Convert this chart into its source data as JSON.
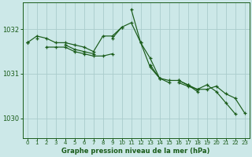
{
  "bg_color": "#cce8e8",
  "grid_color": "#aacccc",
  "line_color": "#1a5c1a",
  "xlabel": "Graphe pression niveau de la mer (hPa)",
  "xlabel_color": "#1a5c1a",
  "ylim": [
    1029.55,
    1032.6
  ],
  "xlim": [
    -0.5,
    23.5
  ],
  "yticks": [
    1030,
    1031,
    1032
  ],
  "xticks": [
    0,
    1,
    2,
    3,
    4,
    5,
    6,
    7,
    8,
    9,
    10,
    11,
    12,
    13,
    14,
    15,
    16,
    17,
    18,
    19,
    20,
    21,
    22,
    23
  ],
  "series": [
    [
      1031.7,
      1031.85,
      1031.8,
      1031.7,
      1031.7,
      1031.65,
      1031.6,
      1031.5,
      1031.85,
      1031.85,
      1032.05,
      1032.15,
      1031.7,
      1031.35,
      1030.9,
      1030.85,
      1030.85,
      1030.75,
      1030.65,
      1030.75,
      1030.6,
      1030.35,
      1030.1,
      null
    ],
    [
      1031.7,
      null,
      1031.6,
      1031.6,
      1031.6,
      1031.5,
      1031.45,
      1031.4,
      1031.4,
      1031.45,
      null,
      1032.45,
      1031.7,
      1031.15,
      1030.9,
      1030.8,
      null,
      null,
      null,
      null,
      null,
      null,
      null,
      null
    ],
    [
      null,
      1031.8,
      null,
      null,
      null,
      null,
      null,
      null,
      null,
      null,
      null,
      null,
      null,
      null,
      null,
      null,
      1030.8,
      1030.72,
      1030.65,
      1030.65,
      1030.72,
      1030.55,
      1030.45,
      1030.12
    ],
    [
      1031.7,
      null,
      null,
      null,
      1031.65,
      1031.55,
      1031.5,
      1031.45,
      null,
      1031.8,
      1032.05,
      null,
      null,
      1031.2,
      1030.9,
      null,
      1030.85,
      1030.75,
      1030.6,
      null,
      null,
      null,
      null,
      null
    ]
  ]
}
